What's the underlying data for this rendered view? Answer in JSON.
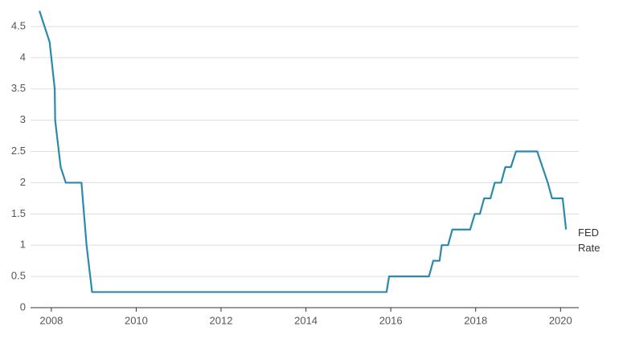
{
  "chart_data": {
    "type": "line",
    "x": [
      2007.72,
      2007.96,
      2008.08,
      2008.09,
      2008.22,
      2008.34,
      2008.71,
      2008.83,
      2008.96,
      2015.9,
      2015.96,
      2016.9,
      2017.0,
      2017.15,
      2017.2,
      2017.35,
      2017.45,
      2017.87,
      2017.98,
      2018.1,
      2018.2,
      2018.35,
      2018.45,
      2018.6,
      2018.7,
      2018.83,
      2018.95,
      2019.45,
      2019.7,
      2019.8,
      2020.05,
      2020.13
    ],
    "series": [
      {
        "name": "FED Rate",
        "color": "#2a8aab",
        "values": [
          4.75,
          4.25,
          3.5,
          3.0,
          2.25,
          2.0,
          2.0,
          1.0,
          0.25,
          0.25,
          0.5,
          0.5,
          0.75,
          0.75,
          1.0,
          1.0,
          1.25,
          1.25,
          1.5,
          1.5,
          1.75,
          1.75,
          2.0,
          2.0,
          2.25,
          2.25,
          2.5,
          2.5,
          2.0,
          1.75,
          1.75,
          1.25
        ]
      }
    ],
    "xlim": [
      2007.51,
      2020.43
    ],
    "xticks": [
      2008,
      2010,
      2012,
      2014,
      2016,
      2018,
      2020
    ],
    "ylim": [
      0,
      4.75
    ],
    "yticks": [
      0,
      0.5,
      1,
      1.5,
      2,
      2.5,
      3,
      3.5,
      4,
      4.5
    ],
    "grid": true
  }
}
